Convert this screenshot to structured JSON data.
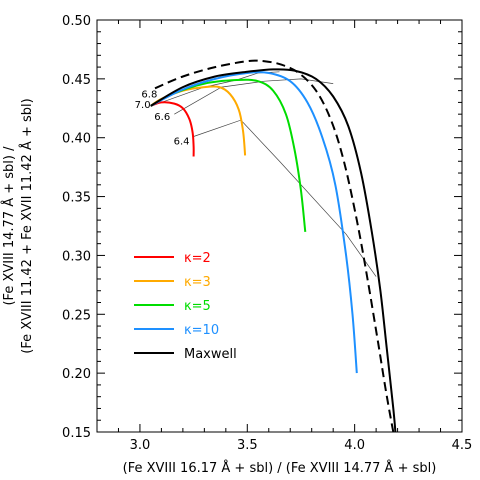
{
  "chart_data": {
    "type": "line",
    "xlabel": "(Fe XVIII 16.17 Å + sbl) / (Fe XVIII 14.77 Å + sbl)",
    "ylabel_lines": [
      "(Fe XVIII 14.77 Å + sbl) /",
      "(Fe XVIII 11.42 + Fe XVII 11.42 Å + sbl)"
    ],
    "xlim": [
      2.8,
      4.5
    ],
    "ylim": [
      0.15,
      0.5
    ],
    "xticks": [
      3.0,
      3.5,
      4.0,
      4.5
    ],
    "xtick_labels": [
      "3.0",
      "3.5",
      "4.0",
      "4.5"
    ],
    "xminor": 0.1,
    "yticks": [
      0.15,
      0.2,
      0.25,
      0.3,
      0.35,
      0.4,
      0.45,
      0.5
    ],
    "ytick_labels": [
      "0.15",
      "0.20",
      "0.25",
      "0.30",
      "0.35",
      "0.40",
      "0.45",
      "0.50"
    ],
    "yminor": 0.01,
    "legend_position": "left-center",
    "series": [
      {
        "name": "κ=2",
        "color": "#ff0000",
        "dashed": false,
        "points": [
          [
            3.05,
            0.427
          ],
          [
            3.1,
            0.43
          ],
          [
            3.16,
            0.429
          ],
          [
            3.2,
            0.425
          ],
          [
            3.23,
            0.416
          ],
          [
            3.245,
            0.405
          ],
          [
            3.25,
            0.393
          ],
          [
            3.25,
            0.384
          ]
        ]
      },
      {
        "name": "κ=3",
        "color": "#ffaa00",
        "dashed": false,
        "points": [
          [
            3.05,
            0.427
          ],
          [
            3.1,
            0.433
          ],
          [
            3.2,
            0.44
          ],
          [
            3.3,
            0.443
          ],
          [
            3.37,
            0.443
          ],
          [
            3.42,
            0.437
          ],
          [
            3.46,
            0.424
          ],
          [
            3.48,
            0.406
          ],
          [
            3.49,
            0.385
          ]
        ]
      },
      {
        "name": "κ=5",
        "color": "#00dd00",
        "dashed": false,
        "points": [
          [
            3.05,
            0.427
          ],
          [
            3.15,
            0.437
          ],
          [
            3.3,
            0.446
          ],
          [
            3.45,
            0.449
          ],
          [
            3.55,
            0.448
          ],
          [
            3.62,
            0.44
          ],
          [
            3.68,
            0.42
          ],
          [
            3.72,
            0.39
          ],
          [
            3.75,
            0.355
          ],
          [
            3.77,
            0.32
          ]
        ]
      },
      {
        "name": "κ=10",
        "color": "#1e90ff",
        "dashed": false,
        "points": [
          [
            3.05,
            0.427
          ],
          [
            3.2,
            0.441
          ],
          [
            3.35,
            0.45
          ],
          [
            3.5,
            0.455
          ],
          [
            3.6,
            0.455
          ],
          [
            3.7,
            0.448
          ],
          [
            3.78,
            0.43
          ],
          [
            3.85,
            0.4
          ],
          [
            3.91,
            0.36
          ],
          [
            3.96,
            0.3
          ],
          [
            3.99,
            0.25
          ],
          [
            4.01,
            0.2
          ]
        ]
      },
      {
        "name": "Maxwell",
        "color": "#000000",
        "dashed": false,
        "points": [
          [
            3.05,
            0.427
          ],
          [
            3.2,
            0.443
          ],
          [
            3.35,
            0.452
          ],
          [
            3.5,
            0.456
          ],
          [
            3.62,
            0.458
          ],
          [
            3.72,
            0.457
          ],
          [
            3.82,
            0.45
          ],
          [
            3.9,
            0.435
          ],
          [
            3.97,
            0.41
          ],
          [
            4.03,
            0.37
          ],
          [
            4.08,
            0.32
          ],
          [
            4.12,
            0.27
          ],
          [
            4.15,
            0.22
          ],
          [
            4.18,
            0.17
          ],
          [
            4.19,
            0.15
          ]
        ]
      }
    ],
    "extra_curves": [
      {
        "color": "#000000",
        "dashed": true,
        "points": [
          [
            3.07,
            0.442
          ],
          [
            3.2,
            0.452
          ],
          [
            3.35,
            0.46
          ],
          [
            3.5,
            0.465
          ],
          [
            3.58,
            0.465
          ],
          [
            3.66,
            0.462
          ],
          [
            3.74,
            0.455
          ],
          [
            3.82,
            0.44
          ],
          [
            3.89,
            0.415
          ],
          [
            3.95,
            0.38
          ],
          [
            4.01,
            0.33
          ],
          [
            4.06,
            0.28
          ],
          [
            4.11,
            0.225
          ],
          [
            4.15,
            0.18
          ],
          [
            4.18,
            0.15
          ]
        ]
      }
    ],
    "isotherms": [
      {
        "label": "7.0",
        "points": [
          [
            3.05,
            0.427
          ],
          [
            3.06,
            0.428
          ],
          [
            3.07,
            0.429
          ]
        ]
      },
      {
        "label": "6.8",
        "points": [
          [
            3.1,
            0.43
          ],
          [
            3.3,
            0.443
          ],
          [
            3.45,
            0.449
          ],
          [
            3.55,
            0.455
          ],
          [
            3.65,
            0.456
          ]
        ]
      },
      {
        "label": "6.6",
        "points": [
          [
            3.16,
            0.42
          ],
          [
            3.38,
            0.443
          ],
          [
            3.58,
            0.448
          ],
          [
            3.75,
            0.45
          ],
          [
            3.9,
            0.446
          ]
        ]
      },
      {
        "label": "6.4",
        "points": [
          [
            3.25,
            0.401
          ],
          [
            3.47,
            0.415
          ],
          [
            3.65,
            0.38
          ],
          [
            3.96,
            0.318
          ],
          [
            4.1,
            0.282
          ]
        ]
      }
    ]
  }
}
